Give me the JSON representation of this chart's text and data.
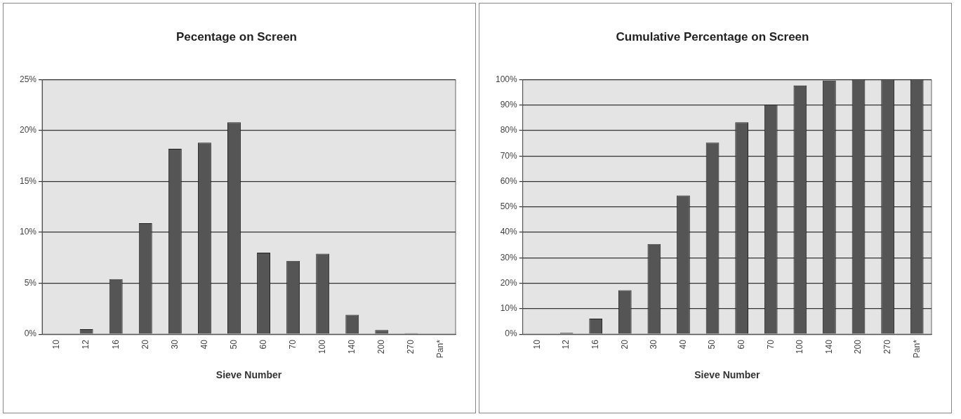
{
  "chart_data": [
    {
      "type": "bar",
      "title": "Pecentage on Screen",
      "xlabel": "Sieve Number",
      "categories": [
        "10",
        "12",
        "16",
        "20",
        "30",
        "40",
        "50",
        "60",
        "70",
        "100",
        "140",
        "200",
        "270",
        "Pan*"
      ],
      "values": [
        0,
        0.5,
        5.4,
        10.9,
        18.2,
        18.8,
        20.8,
        8.0,
        7.2,
        7.9,
        1.9,
        0.4,
        0.1,
        0
      ],
      "color": "#555555",
      "ylim": [
        0,
        25
      ],
      "yticks": [
        {
          "value": 0,
          "label": "0%"
        },
        {
          "value": 5,
          "label": "5%"
        },
        {
          "value": 10,
          "label": "10%"
        },
        {
          "value": 15,
          "label": "15%"
        },
        {
          "value": 20,
          "label": "20%"
        },
        {
          "value": 25,
          "label": "25%"
        }
      ],
      "grid": "y",
      "legend": false
    },
    {
      "type": "bar",
      "title": "Cumulative Percentage on Screen",
      "xlabel": "Sieve Number",
      "categories": [
        "10",
        "12",
        "16",
        "20",
        "30",
        "40",
        "50",
        "60",
        "70",
        "100",
        "140",
        "200",
        "270",
        "Pan*"
      ],
      "values": [
        0,
        0.5,
        6.1,
        17.3,
        35.4,
        54.5,
        75.2,
        83.2,
        90.2,
        97.7,
        99.6,
        100,
        100,
        100
      ],
      "color": "#555555",
      "ylim": [
        0,
        100
      ],
      "yticks": [
        {
          "value": 0,
          "label": "0%"
        },
        {
          "value": 10,
          "label": "10%"
        },
        {
          "value": 20,
          "label": "20%"
        },
        {
          "value": 30,
          "label": "30%"
        },
        {
          "value": 40,
          "label": "40%"
        },
        {
          "value": 50,
          "label": "50%"
        },
        {
          "value": 60,
          "label": "60%"
        },
        {
          "value": 70,
          "label": "70%"
        },
        {
          "value": 80,
          "label": "80%"
        },
        {
          "value": 90,
          "label": "90%"
        },
        {
          "value": 100,
          "label": "100%"
        }
      ],
      "grid": "y",
      "legend": false
    }
  ]
}
